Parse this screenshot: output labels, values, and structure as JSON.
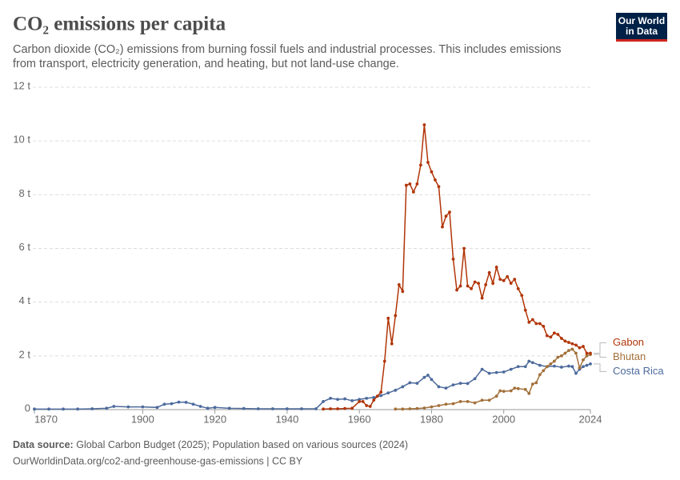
{
  "logo": [
    "Our World",
    "in Data"
  ],
  "chart_data": {
    "type": "line",
    "title": "CO₂ emissions per capita",
    "subtitle": [
      "Carbon dioxide (CO₂) emissions from burning fossil fuels and industrial processes. This includes emissions",
      "from transport, electricity generation, and heating, but not land-use change."
    ],
    "source_label": "Data source:",
    "source": "Global Carbon Budget (2025); Population based on various sources (2024)",
    "url": "OurWorldinData.org/co2-and-greenhouse-gas-emissions | CC BY",
    "xlim": [
      1870,
      2024
    ],
    "xticks": [
      1870,
      1900,
      1920,
      1940,
      1960,
      1980,
      2000,
      2024
    ],
    "ylim": [
      0,
      12
    ],
    "yticks": [
      0,
      {
        "value": 2,
        "label": "2 t"
      },
      {
        "value": 4,
        "label": "4 t"
      },
      {
        "value": 6,
        "label": "6 t"
      },
      {
        "value": 8,
        "label": "8 t"
      },
      {
        "value": 10,
        "label": "10 t"
      },
      {
        "value": 12,
        "label": "12 t"
      }
    ],
    "grid": true,
    "series": [
      {
        "name": "Costa Rica",
        "color": "#4c6a9c",
        "x": [
          1870,
          1874,
          1878,
          1882,
          1886,
          1890,
          1892,
          1896,
          1900,
          1904,
          1906,
          1908,
          1910,
          1912,
          1914,
          1916,
          1918,
          1920,
          1924,
          1928,
          1932,
          1936,
          1940,
          1944,
          1948,
          1950,
          1952,
          1954,
          1956,
          1958,
          1960,
          1962,
          1964,
          1966,
          1968,
          1970,
          1972,
          1974,
          1976,
          1978,
          1979,
          1980,
          1982,
          1984,
          1986,
          1988,
          1990,
          1992,
          1994,
          1996,
          1998,
          2000,
          2002,
          2004,
          2006,
          2007,
          2008,
          2010,
          2012,
          2014,
          2016,
          2018,
          2019,
          2020,
          2021,
          2022,
          2023,
          2024
        ],
        "values": [
          0.02,
          0.02,
          0.02,
          0.02,
          0.03,
          0.05,
          0.12,
          0.1,
          0.1,
          0.08,
          0.2,
          0.22,
          0.28,
          0.27,
          0.2,
          0.12,
          0.05,
          0.08,
          0.05,
          0.04,
          0.03,
          0.03,
          0.03,
          0.03,
          0.03,
          0.3,
          0.42,
          0.38,
          0.4,
          0.33,
          0.38,
          0.42,
          0.45,
          0.52,
          0.62,
          0.72,
          0.85,
          1.0,
          0.98,
          1.2,
          1.28,
          1.12,
          0.85,
          0.8,
          0.92,
          0.98,
          0.97,
          1.15,
          1.5,
          1.35,
          1.38,
          1.4,
          1.5,
          1.6,
          1.6,
          1.8,
          1.75,
          1.65,
          1.6,
          1.62,
          1.58,
          1.62,
          1.6,
          1.35,
          1.5,
          1.6,
          1.65,
          1.7
        ]
      },
      {
        "name": "Bhutan",
        "color": "#a2703a",
        "x": [
          1970,
          1972,
          1974,
          1976,
          1978,
          1980,
          1982,
          1984,
          1986,
          1988,
          1990,
          1992,
          1994,
          1996,
          1998,
          1999,
          2000,
          2002,
          2003,
          2004,
          2006,
          2007,
          2008,
          2009,
          2010,
          2011,
          2012,
          2013,
          2014,
          2015,
          2016,
          2017,
          2018,
          2019,
          2020,
          2021,
          2022,
          2023,
          2024
        ],
        "values": [
          0.02,
          0.02,
          0.03,
          0.04,
          0.06,
          0.1,
          0.15,
          0.2,
          0.22,
          0.3,
          0.3,
          0.25,
          0.35,
          0.35,
          0.5,
          0.7,
          0.68,
          0.7,
          0.8,
          0.78,
          0.75,
          0.6,
          0.95,
          1.0,
          1.3,
          1.45,
          1.6,
          1.7,
          1.8,
          1.95,
          2.0,
          2.1,
          2.2,
          2.25,
          2.1,
          1.55,
          1.85,
          2.0,
          2.05
        ]
      },
      {
        "name": "Gabon",
        "color": "#b13507",
        "x": [
          1950,
          1952,
          1954,
          1956,
          1958,
          1960,
          1961,
          1962,
          1963,
          1964,
          1965,
          1966,
          1967,
          1968,
          1969,
          1970,
          1971,
          1972,
          1973,
          1974,
          1975,
          1976,
          1977,
          1978,
          1979,
          1980,
          1981,
          1982,
          1983,
          1984,
          1985,
          1986,
          1987,
          1988,
          1989,
          1990,
          1991,
          1992,
          1993,
          1994,
          1995,
          1996,
          1997,
          1998,
          1999,
          2000,
          2001,
          2002,
          2003,
          2004,
          2005,
          2006,
          2007,
          2008,
          2009,
          2010,
          2011,
          2012,
          2013,
          2014,
          2015,
          2016,
          2017,
          2018,
          2019,
          2020,
          2021,
          2022,
          2023,
          2024
        ],
        "values": [
          0.02,
          0.03,
          0.03,
          0.04,
          0.05,
          0.3,
          0.3,
          0.15,
          0.12,
          0.35,
          0.5,
          0.65,
          1.8,
          3.4,
          2.45,
          3.5,
          4.65,
          4.4,
          8.35,
          8.4,
          8.1,
          8.4,
          9.1,
          10.6,
          9.2,
          8.85,
          8.55,
          8.3,
          6.8,
          7.2,
          7.35,
          5.6,
          4.45,
          4.6,
          6.0,
          4.6,
          4.5,
          4.75,
          4.7,
          4.15,
          4.65,
          5.1,
          4.7,
          5.3,
          4.85,
          4.8,
          4.95,
          4.7,
          4.85,
          4.5,
          4.25,
          3.7,
          3.25,
          3.35,
          3.2,
          3.2,
          3.1,
          2.75,
          2.7,
          2.85,
          2.8,
          2.65,
          2.55,
          2.5,
          2.45,
          2.4,
          2.3,
          2.35,
          2.1,
          2.1
        ]
      }
    ]
  }
}
